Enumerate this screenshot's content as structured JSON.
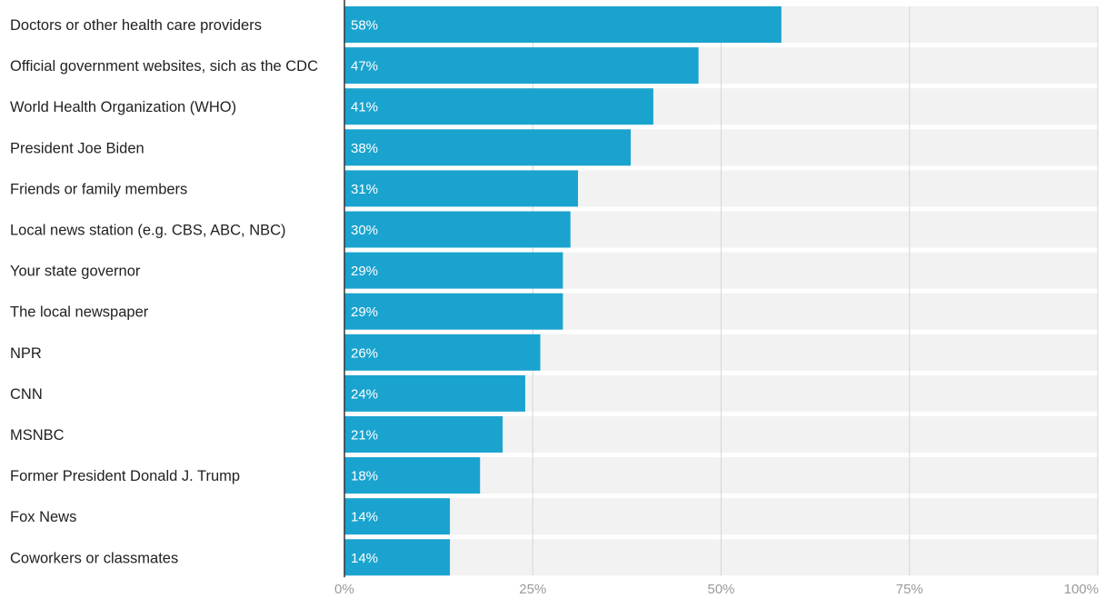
{
  "chart_data": {
    "type": "bar",
    "orientation": "horizontal",
    "categories": [
      "Doctors or other health care providers",
      "Official government websites, sich as the CDC",
      "World Health Organization (WHO)",
      "President Joe Biden",
      "Friends or family members",
      "Local news station (e.g. CBS, ABC, NBC)",
      "Your state governor",
      "The local newspaper",
      "NPR",
      "CNN",
      "MSNBC",
      "Former President Donald J. Trump",
      "Fox News",
      "Coworkers or classmates"
    ],
    "values": [
      58,
      47,
      41,
      38,
      31,
      30,
      29,
      29,
      26,
      24,
      21,
      18,
      14,
      14
    ],
    "value_labels": [
      "58%",
      "47%",
      "41%",
      "38%",
      "31%",
      "30%",
      "29%",
      "29%",
      "26%",
      "24%",
      "21%",
      "18%",
      "14%",
      "14%"
    ],
    "xlim": [
      0,
      100
    ],
    "xticks": [
      0,
      25,
      50,
      75,
      100
    ],
    "xtick_labels": [
      "0%",
      "25%",
      "50%",
      "75%",
      "100%"
    ],
    "title": "",
    "xlabel": "",
    "ylabel": "",
    "grid": true,
    "legend": "none",
    "colors": {
      "bar": "#1aa3cf",
      "track": "#f2f2f2",
      "grid": "#d6d6d6",
      "axis": "#333333",
      "category_text": "#222222",
      "tick_text": "#9a9a9a",
      "value_text": "#ffffff"
    }
  }
}
